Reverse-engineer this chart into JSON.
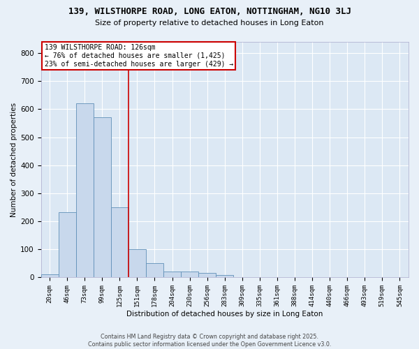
{
  "title": "139, WILSTHORPE ROAD, LONG EATON, NOTTINGHAM, NG10 3LJ",
  "subtitle": "Size of property relative to detached houses in Long Eaton",
  "xlabel": "Distribution of detached houses by size in Long Eaton",
  "ylabel": "Number of detached properties",
  "bar_color": "#c8d8ec",
  "bar_edgecolor": "#6090b8",
  "background_color": "#dce8f4",
  "gridcolor": "#ffffff",
  "fig_facecolor": "#e8f0f8",
  "categories": [
    "20sqm",
    "46sqm",
    "73sqm",
    "99sqm",
    "125sqm",
    "151sqm",
    "178sqm",
    "204sqm",
    "230sqm",
    "256sqm",
    "283sqm",
    "309sqm",
    "335sqm",
    "361sqm",
    "388sqm",
    "414sqm",
    "440sqm",
    "466sqm",
    "493sqm",
    "519sqm",
    "545sqm"
  ],
  "values": [
    10,
    233,
    620,
    570,
    250,
    100,
    50,
    22,
    22,
    15,
    8,
    0,
    0,
    0,
    0,
    0,
    0,
    0,
    0,
    0,
    0
  ],
  "ylim": [
    0,
    840
  ],
  "yticks": [
    0,
    100,
    200,
    300,
    400,
    500,
    600,
    700,
    800
  ],
  "vline_color": "#cc0000",
  "vline_x": 4.5,
  "annotation_text": "139 WILSTHORPE ROAD: 126sqm\n← 76% of detached houses are smaller (1,425)\n23% of semi-detached houses are larger (429) →",
  "annotation_box_facecolor": "#ffffff",
  "annotation_box_edgecolor": "#cc0000",
  "footer_line1": "Contains HM Land Registry data © Crown copyright and database right 2025.",
  "footer_line2": "Contains public sector information licensed under the Open Government Licence v3.0."
}
